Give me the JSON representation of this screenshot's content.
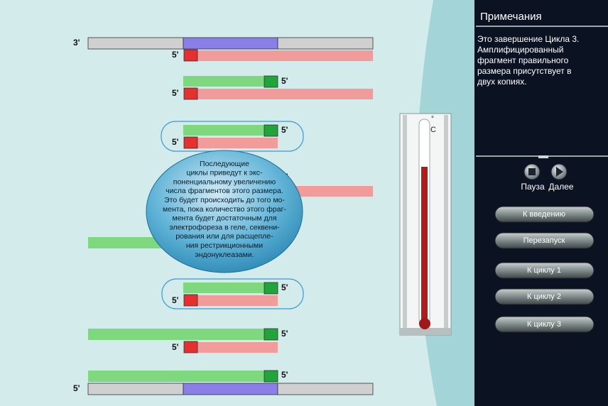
{
  "diagram": {
    "strand_labels": [
      "3'",
      "5'",
      "5'",
      "5'",
      "5'",
      "5'",
      "5'",
      "5'",
      "5'",
      "5'",
      "5'",
      "5'",
      "5'"
    ]
  },
  "callout": {
    "lines": [
      "Последующие",
      "циклы приведут к экс-",
      "поненциальному увеличению",
      "числа фрагментов этого размера.",
      "Это будет происходить до того мо-",
      "мента, пока количество этого фраг-",
      "мента будет достаточным для",
      "электрофореза в геле, секвени-",
      "рования или для расщепле-",
      "ния рестрикционными",
      "эндонуклеазами."
    ]
  },
  "thermometer": {
    "degree": "°",
    "unit": "C"
  },
  "notes": {
    "title": "Примечания",
    "lines": [
      "Это завершение Цикла 3.",
      "Амплифицированный",
      "фрагмент правильного",
      "размера присутствует в",
      "двух копиях."
    ]
  },
  "controls": {
    "pause": "Пауза",
    "next": "Далее"
  },
  "buttons": [
    "К введению",
    "Перезапуск",
    "К циклу 1",
    "К циклу 2",
    "К циклу 3"
  ]
}
